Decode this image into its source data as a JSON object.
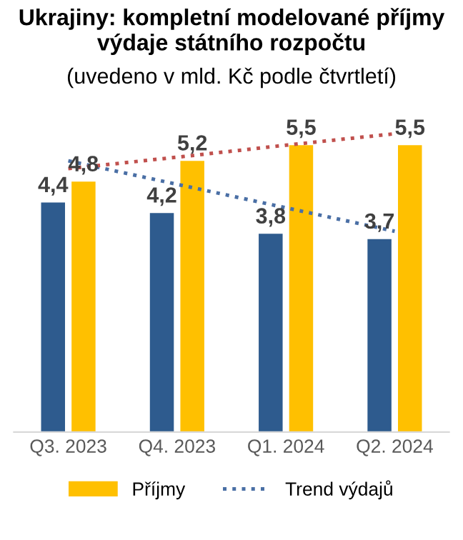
{
  "chart_data": {
    "type": "bar",
    "title": "Ukrajiny: kompletní modelované příjmy\nvýdaje státního rozpočtu",
    "subtitle": "(uvedeno v mld. Kč podle čtvrtletí)",
    "categories": [
      "Q3. 2023",
      "Q4. 2023",
      "Q1. 2024",
      "Q2. 2024"
    ],
    "series": [
      {
        "color": "#2e5b8e",
        "values": [
          4.4,
          4.2,
          3.8,
          3.7
        ],
        "value_labels": [
          "4,4",
          "4,2",
          "3,8",
          "3,7"
        ]
      },
      {
        "name": "Příjmy",
        "color": "#ffc000",
        "values": [
          4.8,
          5.2,
          5.5,
          5.5
        ],
        "value_labels": [
          "4,8",
          "5,2",
          "5,5",
          "5,5"
        ]
      },
      {
        "name": "Trend výdajů",
        "type": "line",
        "color": "#4a6fa5",
        "line_style": "dotted",
        "marker": "none",
        "x": [
          "Q3. 2023",
          "Q4. 2023",
          "Q1. 2024",
          "Q2. 2024"
        ],
        "values": [
          5.2,
          4.75,
          4.3,
          3.85
        ]
      },
      {
        "type": "line",
        "color": "#c0504d",
        "line_style": "dotted",
        "marker": "none",
        "x": [
          "Q3. 2023",
          "Q4. 2023",
          "Q1. 2024",
          "Q2. 2024"
        ],
        "values": [
          5.05,
          5.27,
          5.5,
          5.72
        ]
      }
    ],
    "tick_labels": "x",
    "grid": false,
    "legend": "bottom"
  }
}
